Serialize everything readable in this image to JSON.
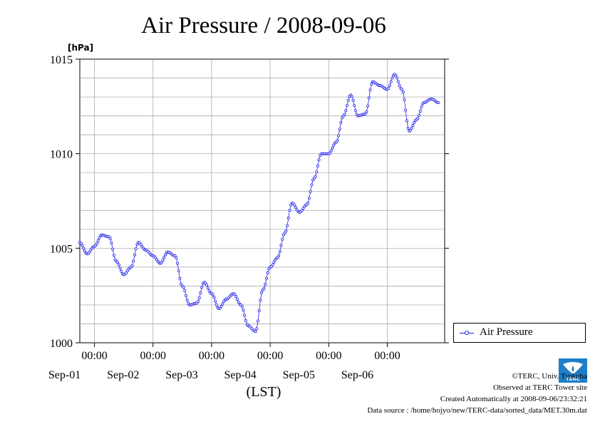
{
  "chart_data": {
    "type": "line",
    "title": "Air Pressure / 2008-09-06",
    "ylabel": "[hPa]",
    "xlabel": "(LST)",
    "ylim": [
      1000,
      1015
    ],
    "yticks": [
      "1000",
      "1005",
      "1010",
      "1015"
    ],
    "xlim": [
      "2008-08-31 18:00",
      "2008-09-06 23:30"
    ],
    "xticks": [
      {
        "time": "00:00",
        "date": "Sep-01"
      },
      {
        "time": "00:00",
        "date": "Sep-02"
      },
      {
        "time": "00:00",
        "date": "Sep-03"
      },
      {
        "time": "00:00",
        "date": "Sep-04"
      },
      {
        "time": "00:00",
        "date": "Sep-05"
      },
      {
        "time": "00:00",
        "date": "Sep-06"
      }
    ],
    "grid": true,
    "legend_position": "bottom-right",
    "series": [
      {
        "name": "Air Pressure",
        "color": "#2222ee",
        "points": [
          [
            "2008-08-31 18:00",
            1005.3
          ],
          [
            "2008-08-31 21:00",
            1004.7
          ],
          [
            "2008-09-01 00:00",
            1005.1
          ],
          [
            "2008-09-01 03:00",
            1005.7
          ],
          [
            "2008-09-01 06:00",
            1005.6
          ],
          [
            "2008-09-01 09:00",
            1004.3
          ],
          [
            "2008-09-01 12:00",
            1003.6
          ],
          [
            "2008-09-01 15:00",
            1004.0
          ],
          [
            "2008-09-01 18:00",
            1005.3
          ],
          [
            "2008-09-01 21:00",
            1004.9
          ],
          [
            "2008-09-02 00:00",
            1004.6
          ],
          [
            "2008-09-02 03:00",
            1004.2
          ],
          [
            "2008-09-02 06:00",
            1004.8
          ],
          [
            "2008-09-02 09:00",
            1004.6
          ],
          [
            "2008-09-02 12:00",
            1003.0
          ],
          [
            "2008-09-02 15:00",
            1002.0
          ],
          [
            "2008-09-02 18:00",
            1002.1
          ],
          [
            "2008-09-02 21:00",
            1003.2
          ],
          [
            "2008-09-03 00:00",
            1002.6
          ],
          [
            "2008-09-03 03:00",
            1001.8
          ],
          [
            "2008-09-03 06:00",
            1002.3
          ],
          [
            "2008-09-03 09:00",
            1002.6
          ],
          [
            "2008-09-03 12:00",
            1002.0
          ],
          [
            "2008-09-03 15:00",
            1000.9
          ],
          [
            "2008-09-03 18:00",
            1000.6
          ],
          [
            "2008-09-03 21:00",
            1002.8
          ],
          [
            "2008-09-04 00:00",
            1004.0
          ],
          [
            "2008-09-04 03:00",
            1004.5
          ],
          [
            "2008-09-04 06:00",
            1005.8
          ],
          [
            "2008-09-04 09:00",
            1007.4
          ],
          [
            "2008-09-04 12:00",
            1006.9
          ],
          [
            "2008-09-04 15:00",
            1007.3
          ],
          [
            "2008-09-04 18:00",
            1008.7
          ],
          [
            "2008-09-04 21:00",
            1010.0
          ],
          [
            "2008-09-05 00:00",
            1010.0
          ],
          [
            "2008-09-05 03:00",
            1010.6
          ],
          [
            "2008-09-05 06:00",
            1012.0
          ],
          [
            "2008-09-05 09:00",
            1013.1
          ],
          [
            "2008-09-05 12:00",
            1012.0
          ],
          [
            "2008-09-05 15:00",
            1012.1
          ],
          [
            "2008-09-05 18:00",
            1013.8
          ],
          [
            "2008-09-05 21:00",
            1013.6
          ],
          [
            "2008-09-06 00:00",
            1013.4
          ],
          [
            "2008-09-06 03:00",
            1014.2
          ],
          [
            "2008-09-06 06:00",
            1013.4
          ],
          [
            "2008-09-06 09:00",
            1011.2
          ],
          [
            "2008-09-06 12:00",
            1011.8
          ],
          [
            "2008-09-06 15:00",
            1012.7
          ],
          [
            "2008-09-06 18:00",
            1012.9
          ],
          [
            "2008-09-06 21:00",
            1012.7
          ]
        ]
      }
    ]
  },
  "credits": {
    "copyright": "©TERC, Univ. Tsukuba",
    "observed": "Observed at TERC Tower site",
    "created": "Created Automatically at 2008-09-06/23:32:21",
    "source": "Data source : /home/hojyo/new/TERC-data/sorted_data/MET.30m.dat"
  },
  "logo": {
    "text": "TERC",
    "color": "#1e7fc8"
  }
}
